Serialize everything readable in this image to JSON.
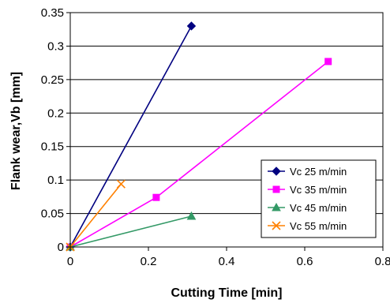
{
  "chart_data": {
    "type": "line",
    "xlabel": "Cutting Time [min]",
    "ylabel": "Flank wear,Vb [mm]",
    "xlim": [
      0,
      0.8
    ],
    "ylim": [
      0,
      0.35
    ],
    "xticks": [
      "0",
      "0.2",
      "0.4",
      "0.6",
      "0.8"
    ],
    "yticks": [
      "0",
      "0.05",
      "0.1",
      "0.15",
      "0.2",
      "0.25",
      "0.3",
      "0.35"
    ],
    "grid": "horizontal",
    "legend_position": "bottom-right",
    "series": [
      {
        "name": "Vc 25 m/min",
        "color": "#000080",
        "marker": "diamond",
        "points": [
          [
            0,
            0
          ],
          [
            0.31,
            0.33
          ]
        ]
      },
      {
        "name": "Vc 35 m/min",
        "color": "#ff00ff",
        "marker": "square",
        "points": [
          [
            0,
            0
          ],
          [
            0.22,
            0.074
          ],
          [
            0.66,
            0.277
          ]
        ]
      },
      {
        "name": "Vc 45 m/min",
        "color": "#339966",
        "marker": "triangle",
        "points": [
          [
            0,
            0
          ],
          [
            0.31,
            0.046
          ]
        ]
      },
      {
        "name": "Vc 55 m/min",
        "color": "#ff8000",
        "marker": "x",
        "points": [
          [
            0,
            0
          ],
          [
            0.13,
            0.094
          ]
        ]
      }
    ]
  }
}
